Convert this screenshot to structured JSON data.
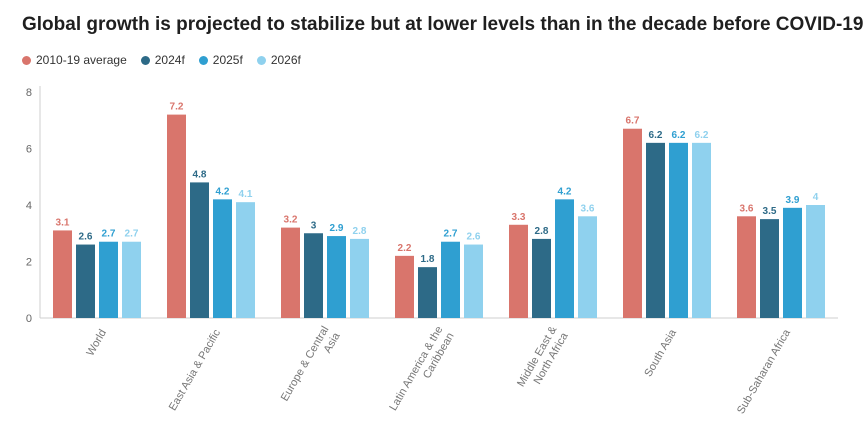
{
  "chart_data": {
    "type": "bar",
    "title": "Global growth is projected to stabilize but at lower levels than in the decade before COVID-19",
    "categories": [
      "World",
      "East Asia & Pacific",
      "Europe & Central Asia",
      "Latin America & the Caribbean",
      "Middle East & North Africa",
      "South Asia",
      "Sub-Saharan Africa"
    ],
    "category_lines": [
      [
        "World"
      ],
      [
        "East Asia & Pacific"
      ],
      [
        "Europe & Central",
        "Asia"
      ],
      [
        "Latin America & the",
        "Caribbean"
      ],
      [
        "Middle East &",
        "North Africa"
      ],
      [
        "South Asia"
      ],
      [
        "Sub-Saharan Africa"
      ]
    ],
    "series": [
      {
        "name": "2010-19 average",
        "color": "#d9756c",
        "values": [
          3.1,
          7.2,
          3.2,
          2.2,
          3.3,
          6.7,
          3.6
        ],
        "labels": [
          "3.1",
          "7.2",
          "3.2",
          "2.2",
          "3.3",
          "6.7",
          "3.6"
        ]
      },
      {
        "name": "2024f",
        "color": "#2d6a87",
        "values": [
          2.6,
          4.8,
          3.0,
          1.8,
          2.8,
          6.2,
          3.5
        ],
        "labels": [
          "2.6",
          "4.8",
          "3",
          "1.8",
          "2.8",
          "6.2",
          "3.5"
        ]
      },
      {
        "name": "2025f",
        "color": "#2f9fd1",
        "values": [
          2.7,
          4.2,
          2.9,
          2.7,
          4.2,
          6.2,
          3.9
        ],
        "labels": [
          "2.7",
          "4.2",
          "2.9",
          "2.7",
          "4.2",
          "6.2",
          "3.9"
        ]
      },
      {
        "name": "2026f",
        "color": "#8fd1ee",
        "values": [
          2.7,
          4.1,
          2.8,
          2.6,
          3.6,
          6.2,
          4.0
        ],
        "labels": [
          "2.7",
          "4.1",
          "2.8",
          "2.6",
          "3.6",
          "6.2",
          "4"
        ]
      }
    ],
    "yticks": [
      "0",
      "2",
      "4",
      "6",
      "8"
    ],
    "ylim": [
      0,
      8
    ],
    "grid": false,
    "legend_position": "top-left"
  }
}
